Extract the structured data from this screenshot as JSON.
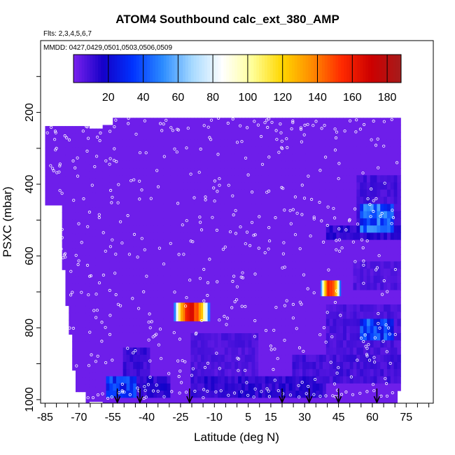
{
  "chart_data": {
    "type": "heatmap",
    "title": "ATOM4 Southbound calc_ext_380_AMP",
    "flights_label": "Flts: 2,3,4,5,6,7",
    "dates_label": "MMDD: 0427,0429,0501,0503,0506,0509",
    "xlabel": "Latitude (deg N)",
    "ylabel": "PSXC (mbar)",
    "xlim": [
      -87,
      87
    ],
    "ylim": [
      1010,
      0
    ],
    "x_ticks": [
      -85,
      -70,
      -55,
      -40,
      -25,
      -10,
      5,
      15,
      30,
      45,
      60,
      75
    ],
    "y_ticks": [
      200,
      400,
      600,
      800,
      1000
    ],
    "colorbar": {
      "range": [
        0,
        188
      ],
      "ticks": [
        20,
        40,
        60,
        80,
        100,
        120,
        140,
        160,
        180
      ],
      "colors": [
        "#7a22ee",
        "#1400c8",
        "#0033ff",
        "#2c8cff",
        "#a8daff",
        "#ffffff",
        "#ffff99",
        "#ffd700",
        "#ff8c00",
        "#ff2a00",
        "#cc0000",
        "#a51c1c"
      ]
    },
    "background_value": 2,
    "coverage_lat_range": [
      -85,
      72
    ],
    "enhanced_regions": [
      {
        "lat_range": [
          -20,
          10
        ],
        "p_range": [
          820,
          940
        ],
        "value": 8
      },
      {
        "lat_range": [
          -50,
          -38
        ],
        "p_range": [
          860,
          940
        ],
        "value": 12
      },
      {
        "lat_range": [
          -58,
          -45
        ],
        "p_range": [
          930,
          1000
        ],
        "value": 35
      },
      {
        "lat_range": [
          -45,
          -30
        ],
        "p_range": [
          940,
          1000
        ],
        "value": 15
      },
      {
        "lat_range": [
          -20,
          40
        ],
        "p_range": [
          930,
          1000
        ],
        "value": 14
      },
      {
        "lat_range": [
          25,
          72
        ],
        "p_range": [
          880,
          960
        ],
        "value": 10
      },
      {
        "lat_range": [
          40,
          72
        ],
        "p_range": [
          740,
          880
        ],
        "value": 9
      },
      {
        "lat_range": [
          53,
          72
        ],
        "p_range": [
          380,
          560
        ],
        "value": 10
      },
      {
        "lat_range": [
          40,
          72
        ],
        "p_range": [
          520,
          560
        ],
        "value": 14
      },
      {
        "lat_range": [
          55,
          70
        ],
        "p_range": [
          460,
          540
        ],
        "value": 45
      },
      {
        "lat_range": [
          55,
          70
        ],
        "p_range": [
          780,
          840
        ],
        "value": 40
      },
      {
        "lat_range": [
          52,
          72
        ],
        "p_range": [
          620,
          700
        ],
        "value": 8
      }
    ],
    "peak_regions": [
      {
        "lat_range": [
          -28,
          -12
        ],
        "p_range": [
          730,
          782
        ],
        "peak": 172
      },
      {
        "lat_range": [
          37,
          46
        ],
        "p_range": [
          668,
          712
        ],
        "peak": 165
      }
    ],
    "arrow_latitudes": [
      -53,
      -43,
      -21,
      20,
      32,
      45,
      62
    ]
  }
}
